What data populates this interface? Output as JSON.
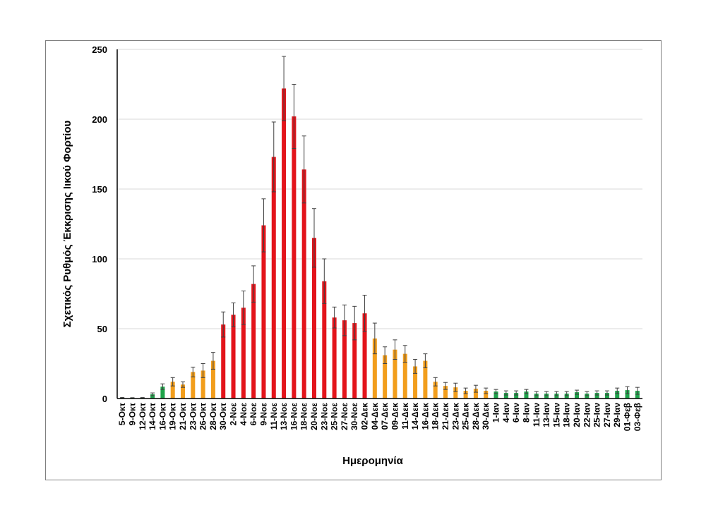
{
  "chart_data": {
    "type": "bar",
    "xlabel": "Ημερομηνία",
    "ylabel": "Σχετικός Ρυθμός Έκκρισης Ιικού Φορτίου",
    "ylim": [
      0,
      250
    ],
    "yticks": [
      0,
      50,
      100,
      150,
      200,
      250
    ],
    "grid": true,
    "legend": "none",
    "colors": {
      "green": "#1ea34a",
      "orange": "#f29e1c",
      "red": "#e3141b",
      "error_bar": "#404040",
      "grid": "#d9d9d9",
      "axis": "#000000"
    },
    "categories": [
      "5-Οκτ",
      "9-Οκτ",
      "12-Οκτ",
      "14-Οκτ",
      "16-Οκτ",
      "19-Οκτ",
      "21-Οκτ",
      "23-Οκτ",
      "26-Οκτ",
      "28-Οκτ",
      "30-Οκτ",
      "2-Νοε",
      "4-Νοε",
      "6-Νοε",
      "9-Νοε",
      "11-Νοε",
      "13-Νοε",
      "16-Νοε",
      "18-Νοε",
      "20-Νοε",
      "23-Νοε",
      "25-Νοε",
      "27-Νοε",
      "30-Νοε",
      "02-Δεκ",
      "04-Δεκ",
      "07-Δεκ",
      "09-Δεκ",
      "11-Δεκ",
      "14-Δεκ",
      "16-Δεκ",
      "18-Δεκ",
      "21-Δεκ",
      "23-Δεκ",
      "25-Δεκ",
      "28-Δεκ",
      "30-Δεκ",
      "1-Ιαν",
      "4-Ιαν",
      "6-Ιαν",
      "8-Ιαν",
      "11-Ιαν",
      "13-Ιαν",
      "15-Ιαν",
      "18-Ιαν",
      "20-Ιαν",
      "22-Ιαν",
      "25-Ιαν",
      "27-Ιαν",
      "29-Ιαν",
      "01-Φεβ",
      "03-Φεβ"
    ],
    "values": [
      0.5,
      0.3,
      0.4,
      3,
      8.5,
      12,
      10,
      19,
      20,
      27,
      53,
      60,
      65,
      82,
      124,
      173,
      222,
      202,
      164,
      115,
      84,
      58,
      56,
      54,
      61,
      43,
      31,
      35,
      32,
      23,
      27,
      12,
      9,
      8,
      5.5,
      7,
      5.5,
      5,
      4,
      4,
      5,
      3.5,
      3.5,
      3.5,
      3.5,
      4.5,
      3.5,
      4,
      4,
      5.5,
      6,
      5.5
    ],
    "error": [
      0.3,
      0.3,
      0.3,
      1,
      2,
      3,
      2,
      3.5,
      5,
      6,
      9,
      8.5,
      12,
      13,
      19,
      25,
      23,
      23,
      24,
      21,
      16,
      7.5,
      11,
      12,
      13,
      11,
      6,
      7,
      6,
      5,
      5,
      3,
      2.5,
      3,
      2,
      2.5,
      2,
      1.5,
      1.5,
      1.5,
      1.5,
      1.5,
      1.5,
      1.5,
      1.5,
      1.5,
      1.5,
      1.5,
      1.5,
      2,
      2.5,
      2.5
    ],
    "bar_colors": [
      "green",
      "green",
      "green",
      "green",
      "green",
      "orange",
      "orange",
      "orange",
      "orange",
      "orange",
      "red",
      "red",
      "red",
      "red",
      "red",
      "red",
      "red",
      "red",
      "red",
      "red",
      "red",
      "red",
      "red",
      "red",
      "red",
      "orange",
      "orange",
      "orange",
      "orange",
      "orange",
      "orange",
      "orange",
      "orange",
      "orange",
      "orange",
      "orange",
      "orange",
      "green",
      "green",
      "green",
      "green",
      "green",
      "green",
      "green",
      "green",
      "green",
      "green",
      "green",
      "green",
      "green",
      "green",
      "green"
    ]
  }
}
